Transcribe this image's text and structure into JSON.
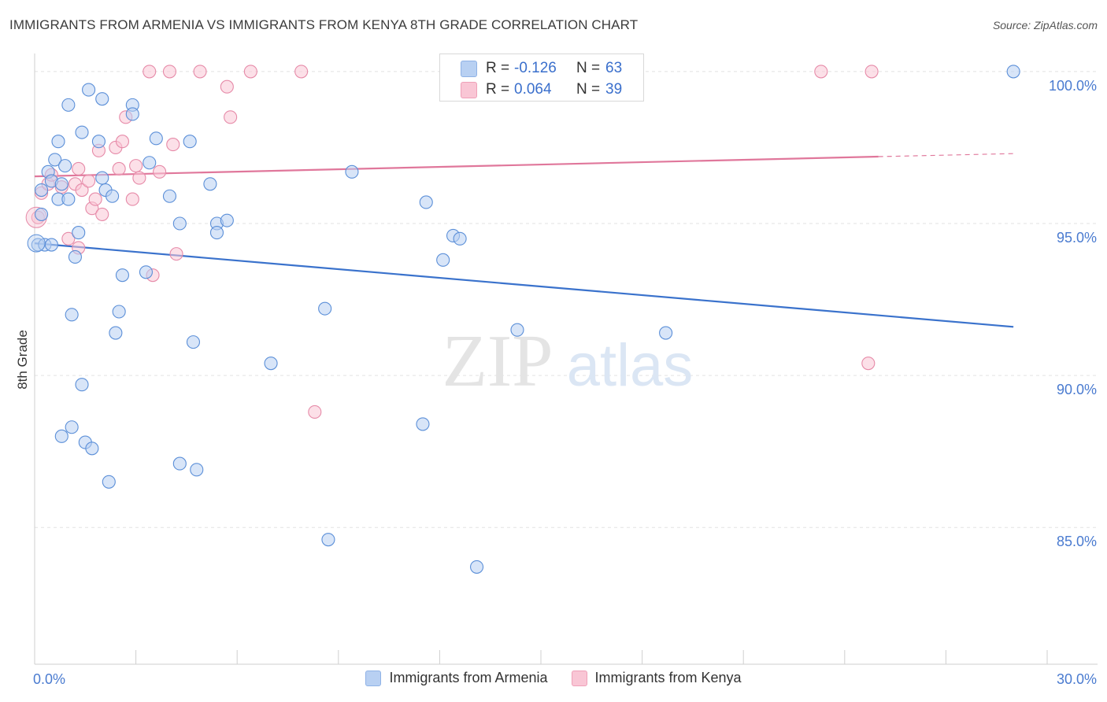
{
  "title": "IMMIGRANTS FROM ARMENIA VS IMMIGRANTS FROM KENYA 8TH GRADE CORRELATION CHART",
  "source": "Source: ZipAtlas.com",
  "watermark": {
    "zip": "ZIP",
    "atlas": "atlas"
  },
  "stats": {
    "armenia": {
      "r_label": "R =",
      "r_value": "-0.126",
      "n_label": "N =",
      "n_value": "63"
    },
    "kenya": {
      "r_label": "R =",
      "r_value": "0.064",
      "n_label": "N =",
      "n_value": "39"
    }
  },
  "legend": {
    "armenia": "Immigrants from Armenia",
    "kenya": "Immigrants from Kenya"
  },
  "chart_data": {
    "type": "scatter",
    "title": "IMMIGRANTS FROM ARMENIA VS IMMIGRANTS FROM KENYA 8TH GRADE CORRELATION CHART",
    "xlabel": "",
    "ylabel": "8th Grade",
    "xlim": [
      0,
      30
    ],
    "ylim": [
      80.5,
      100.8
    ],
    "x_tick_labels": [
      "0.0%",
      "30.0%"
    ],
    "y_ticks": [
      85,
      90,
      95,
      100
    ],
    "y_tick_labels": [
      "85.0%",
      "90.0%",
      "95.0%",
      "100.0%"
    ],
    "grid": true,
    "legend_position": "bottom",
    "colors": {
      "armenia_fill": "#b8d0f2",
      "armenia_stroke": "#5b8fd8",
      "armenia_line": "#3a72cc",
      "kenya_fill": "#f9c6d5",
      "kenya_stroke": "#e68aa8",
      "kenya_line": "#e0779b"
    },
    "series": [
      {
        "name": "Immigrants from Armenia",
        "trend": {
          "x": [
            0,
            29.0
          ],
          "y": [
            94.35,
            91.6
          ]
        },
        "points": [
          [
            0.1,
            94.3
          ],
          [
            0.2,
            95.3
          ],
          [
            0.2,
            96.1
          ],
          [
            0.3,
            94.3
          ],
          [
            0.4,
            96.7
          ],
          [
            0.5,
            96.4
          ],
          [
            0.5,
            94.3
          ],
          [
            0.6,
            97.1
          ],
          [
            0.7,
            97.7
          ],
          [
            0.7,
            95.8
          ],
          [
            0.8,
            96.3
          ],
          [
            0.8,
            88.0
          ],
          [
            0.9,
            96.9
          ],
          [
            1.0,
            95.8
          ],
          [
            1.0,
            98.9
          ],
          [
            1.1,
            92.0
          ],
          [
            1.1,
            88.3
          ],
          [
            1.2,
            93.9
          ],
          [
            1.3,
            94.7
          ],
          [
            1.4,
            98.0
          ],
          [
            1.4,
            89.7
          ],
          [
            1.5,
            87.8
          ],
          [
            1.6,
            99.4
          ],
          [
            1.7,
            87.6
          ],
          [
            1.9,
            97.7
          ],
          [
            2.0,
            99.1
          ],
          [
            2.0,
            96.5
          ],
          [
            2.1,
            96.1
          ],
          [
            2.2,
            86.5
          ],
          [
            2.3,
            95.9
          ],
          [
            2.4,
            91.4
          ],
          [
            2.5,
            92.1
          ],
          [
            2.6,
            93.3
          ],
          [
            2.9,
            98.9
          ],
          [
            2.9,
            98.6
          ],
          [
            3.3,
            93.4
          ],
          [
            3.4,
            97.0
          ],
          [
            3.6,
            97.8
          ],
          [
            4.0,
            95.9
          ],
          [
            4.3,
            95.0
          ],
          [
            4.3,
            87.1
          ],
          [
            4.6,
            97.7
          ],
          [
            4.7,
            91.1
          ],
          [
            4.8,
            86.9
          ],
          [
            5.2,
            96.3
          ],
          [
            5.4,
            95.0
          ],
          [
            5.4,
            94.7
          ],
          [
            5.7,
            95.1
          ],
          [
            7.0,
            90.4
          ],
          [
            8.6,
            92.2
          ],
          [
            8.7,
            84.6
          ],
          [
            9.4,
            96.7
          ],
          [
            11.5,
            88.4
          ],
          [
            11.6,
            95.7
          ],
          [
            12.1,
            93.8
          ],
          [
            12.4,
            94.6
          ],
          [
            12.6,
            94.5
          ],
          [
            13.1,
            83.7
          ],
          [
            14.3,
            91.5
          ],
          [
            18.7,
            91.4
          ],
          [
            29.0,
            100.0
          ]
        ]
      },
      {
        "name": "Immigrants from Kenya",
        "trend": {
          "x": [
            0,
            25.0
          ],
          "y": [
            96.55,
            97.2
          ]
        },
        "trend_dashed": {
          "x": [
            25.0,
            29.0
          ],
          "y": [
            97.2,
            97.3
          ]
        },
        "points": [
          [
            0.1,
            95.2
          ],
          [
            0.2,
            96.0
          ],
          [
            0.4,
            96.3
          ],
          [
            0.5,
            96.6
          ],
          [
            0.8,
            96.2
          ],
          [
            1.0,
            94.5
          ],
          [
            1.2,
            96.3
          ],
          [
            1.3,
            96.8
          ],
          [
            1.3,
            94.2
          ],
          [
            1.4,
            96.1
          ],
          [
            1.6,
            96.4
          ],
          [
            1.7,
            95.5
          ],
          [
            1.8,
            95.8
          ],
          [
            1.9,
            97.4
          ],
          [
            2.0,
            95.3
          ],
          [
            2.4,
            97.5
          ],
          [
            2.5,
            96.8
          ],
          [
            2.6,
            97.7
          ],
          [
            2.7,
            98.5
          ],
          [
            2.9,
            95.8
          ],
          [
            3.0,
            96.9
          ],
          [
            3.1,
            96.5
          ],
          [
            3.4,
            100.0
          ],
          [
            3.5,
            93.3
          ],
          [
            3.7,
            96.7
          ],
          [
            4.0,
            100.0
          ],
          [
            4.1,
            97.6
          ],
          [
            4.2,
            94.0
          ],
          [
            4.9,
            100.0
          ],
          [
            5.7,
            99.5
          ],
          [
            5.8,
            98.5
          ],
          [
            6.4,
            100.0
          ],
          [
            7.9,
            100.0
          ],
          [
            8.3,
            88.8
          ],
          [
            23.3,
            100.0
          ],
          [
            24.8,
            100.0
          ],
          [
            24.7,
            90.4
          ]
        ]
      }
    ]
  }
}
